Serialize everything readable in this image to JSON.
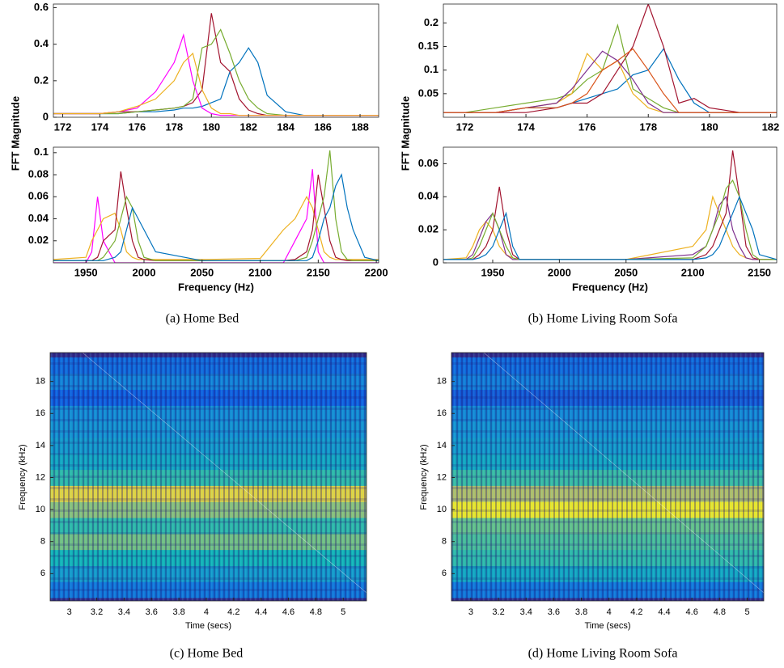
{
  "captions": [
    "(a)  Home Bed",
    "(b)  Home Living Room Sofa",
    "(c)  Home Bed",
    "(d)  Home Living Room Sofa"
  ],
  "chart_data": [
    {
      "type": "line",
      "y_label": "FFT Magnitude",
      "x": [
        171.5,
        173,
        174,
        175,
        176,
        177,
        178,
        178.5,
        179,
        179.5,
        180,
        180.5,
        181,
        181.5,
        182,
        182.5,
        183,
        184,
        185,
        189
      ],
      "xlim": [
        171.5,
        189
      ],
      "xticks": [
        172,
        174,
        176,
        178,
        180,
        182,
        184,
        186,
        188
      ],
      "ylim": [
        0,
        0.62
      ],
      "yticks": [
        0,
        0.2,
        0.4,
        0.6
      ],
      "series": [
        {
          "color": "#0072bd",
          "values": [
            0.02,
            0.02,
            0.02,
            0.02,
            0.03,
            0.03,
            0.04,
            0.05,
            0.05,
            0.06,
            0.08,
            0.1,
            0.25,
            0.3,
            0.38,
            0.3,
            0.12,
            0.03,
            0.01,
            0.01
          ]
        },
        {
          "color": "#a2142f",
          "values": [
            0.02,
            0.02,
            0.02,
            0.03,
            0.03,
            0.04,
            0.05,
            0.06,
            0.08,
            0.15,
            0.57,
            0.3,
            0.25,
            0.1,
            0.04,
            0.02,
            0.01,
            0.01,
            0.01,
            0.01
          ]
        },
        {
          "color": "#77ac30",
          "values": [
            0.02,
            0.02,
            0.02,
            0.02,
            0.03,
            0.04,
            0.05,
            0.06,
            0.1,
            0.38,
            0.4,
            0.48,
            0.35,
            0.2,
            0.1,
            0.05,
            0.02,
            0.01,
            0.01,
            0.01
          ]
        },
        {
          "color": "#ff00ff",
          "values": [
            0.02,
            0.02,
            0.02,
            0.03,
            0.05,
            0.14,
            0.3,
            0.45,
            0.2,
            0.05,
            0.02,
            0.01,
            0.01,
            0.01,
            0.01,
            0.01,
            0.01,
            0.01,
            0.01,
            0.01
          ]
        },
        {
          "color": "#edb120",
          "values": [
            0.02,
            0.02,
            0.02,
            0.03,
            0.06,
            0.1,
            0.2,
            0.3,
            0.35,
            0.15,
            0.05,
            0.02,
            0.02,
            0.01,
            0.01,
            0.01,
            0.01,
            0.01,
            0.01,
            0.01
          ]
        }
      ]
    },
    {
      "type": "line",
      "x_label": "Frequency (Hz)",
      "x": [
        1922,
        1950,
        1955,
        1960,
        1965,
        1975,
        1980,
        1985,
        1990,
        1995,
        2000,
        2010,
        2050,
        2100,
        2120,
        2130,
        2140,
        2145,
        2150,
        2155,
        2160,
        2165,
        2170,
        2175,
        2180,
        2190,
        2202
      ],
      "xlim": [
        1922,
        2202
      ],
      "xticks": [
        1950,
        2000,
        2050,
        2100,
        2150,
        2200
      ],
      "ylim": [
        0,
        0.105
      ],
      "yticks": [
        0.02,
        0.04,
        0.06,
        0.08,
        0.1
      ],
      "series": [
        {
          "color": "#ff00ff",
          "values": [
            0,
            0,
            0.01,
            0.06,
            0.02,
            0,
            0,
            0,
            0,
            0,
            0,
            0,
            0,
            0,
            0,
            0.02,
            0.04,
            0.085,
            0.01,
            0,
            0,
            0,
            0,
            0,
            0,
            0,
            0
          ]
        },
        {
          "color": "#edb120",
          "values": [
            0.003,
            0.005,
            0.02,
            0.03,
            0.04,
            0.045,
            0.03,
            0.01,
            0.005,
            0.003,
            0.003,
            0.003,
            0.003,
            0.004,
            0.03,
            0.04,
            0.06,
            0.05,
            0.03,
            0.01,
            0.005,
            0.003,
            0.003,
            0.003,
            0.003,
            0.003,
            0.003
          ]
        },
        {
          "color": "#a2142f",
          "values": [
            0.002,
            0.002,
            0.002,
            0.005,
            0.02,
            0.03,
            0.083,
            0.05,
            0.02,
            0.005,
            0.003,
            0.002,
            0.002,
            0.002,
            0.002,
            0.003,
            0.01,
            0.03,
            0.08,
            0.05,
            0.02,
            0.005,
            0.003,
            0.002,
            0.002,
            0.002,
            0.002
          ]
        },
        {
          "color": "#77ac30",
          "values": [
            0.002,
            0.002,
            0.002,
            0.002,
            0.005,
            0.02,
            0.04,
            0.06,
            0.05,
            0.02,
            0.005,
            0.002,
            0.002,
            0.002,
            0.002,
            0.002,
            0.005,
            0.02,
            0.04,
            0.06,
            0.102,
            0.04,
            0.01,
            0.003,
            0.002,
            0.002,
            0.002
          ]
        },
        {
          "color": "#0072bd",
          "values": [
            0.002,
            0.002,
            0.002,
            0.002,
            0.002,
            0.005,
            0.01,
            0.03,
            0.05,
            0.04,
            0.03,
            0.01,
            0.002,
            0.002,
            0.002,
            0.002,
            0.002,
            0.005,
            0.02,
            0.04,
            0.05,
            0.07,
            0.08,
            0.05,
            0.03,
            0.005,
            0.002
          ]
        }
      ]
    },
    {
      "type": "line",
      "y_label": "FFT Magnitude",
      "x": [
        171.3,
        172,
        173,
        174,
        175,
        175.5,
        176,
        176.5,
        177,
        177.5,
        178,
        178.5,
        179,
        179.5,
        180,
        181,
        182.2
      ],
      "xlim": [
        171.3,
        182.2
      ],
      "xticks": [
        172,
        174,
        176,
        178,
        180,
        182
      ],
      "ylim": [
        0,
        0.24
      ],
      "yticks": [
        0.05,
        0.1,
        0.15,
        0.2
      ],
      "series": [
        {
          "color": "#0072bd",
          "values": [
            0.01,
            0.01,
            0.01,
            0.02,
            0.02,
            0.03,
            0.04,
            0.05,
            0.06,
            0.09,
            0.1,
            0.145,
            0.08,
            0.03,
            0.01,
            0.01,
            0.01
          ]
        },
        {
          "color": "#a2142f",
          "values": [
            0.01,
            0.01,
            0.01,
            0.01,
            0.02,
            0.03,
            0.03,
            0.05,
            0.1,
            0.15,
            0.24,
            0.15,
            0.03,
            0.04,
            0.02,
            0.01,
            0.01
          ]
        },
        {
          "color": "#77ac30",
          "values": [
            0.01,
            0.01,
            0.02,
            0.03,
            0.04,
            0.05,
            0.08,
            0.1,
            0.195,
            0.06,
            0.04,
            0.02,
            0.01,
            0.01,
            0.01,
            0.01,
            0.01
          ]
        },
        {
          "color": "#edb120",
          "values": [
            0.01,
            0.01,
            0.01,
            0.02,
            0.03,
            0.05,
            0.135,
            0.1,
            0.12,
            0.05,
            0.02,
            0.01,
            0.01,
            0.01,
            0.01,
            0.01,
            0.01
          ]
        },
        {
          "color": "#7e2f8e",
          "values": [
            0.01,
            0.01,
            0.01,
            0.02,
            0.03,
            0.06,
            0.1,
            0.14,
            0.12,
            0.08,
            0.03,
            0.01,
            0.01,
            0.01,
            0.01,
            0.01,
            0.01
          ]
        },
        {
          "color": "#d95319",
          "values": [
            0.01,
            0.01,
            0.01,
            0.02,
            0.02,
            0.03,
            0.05,
            0.1,
            0.12,
            0.145,
            0.1,
            0.05,
            0.01,
            0.01,
            0.01,
            0.01,
            0.01
          ]
        }
      ]
    },
    {
      "type": "line",
      "x_label": "Frequency (Hz)",
      "x": [
        1913,
        1930,
        1935,
        1940,
        1945,
        1950,
        1955,
        1960,
        1965,
        1970,
        2000,
        2050,
        2100,
        2110,
        2115,
        2120,
        2125,
        2130,
        2135,
        2140,
        2145,
        2150,
        2163
      ],
      "xlim": [
        1913,
        2163
      ],
      "xticks": [
        1950,
        2000,
        2050,
        2100,
        2150
      ],
      "ylim": [
        0,
        0.07
      ],
      "yticks": [
        0,
        0.02,
        0.04,
        0.06
      ],
      "series": [
        {
          "color": "#edb120",
          "values": [
            0.002,
            0.003,
            0.01,
            0.02,
            0.025,
            0.02,
            0.01,
            0.005,
            0.003,
            0.002,
            0.002,
            0.002,
            0.01,
            0.02,
            0.04,
            0.03,
            0.02,
            0.01,
            0.005,
            0.003,
            0.002,
            0.002,
            0.002
          ]
        },
        {
          "color": "#7e2f8e",
          "values": [
            0.002,
            0.002,
            0.005,
            0.015,
            0.025,
            0.03,
            0.02,
            0.005,
            0.002,
            0.002,
            0.002,
            0.002,
            0.005,
            0.01,
            0.02,
            0.035,
            0.04,
            0.02,
            0.01,
            0.003,
            0.002,
            0.002,
            0.002
          ]
        },
        {
          "color": "#a2142f",
          "values": [
            0.002,
            0.002,
            0.002,
            0.005,
            0.01,
            0.02,
            0.046,
            0.02,
            0.005,
            0.002,
            0.002,
            0.002,
            0.002,
            0.005,
            0.01,
            0.02,
            0.03,
            0.068,
            0.04,
            0.01,
            0.003,
            0.002,
            0.002
          ]
        },
        {
          "color": "#77ac30",
          "values": [
            0.002,
            0.002,
            0.003,
            0.01,
            0.02,
            0.03,
            0.02,
            0.01,
            0.003,
            0.002,
            0.002,
            0.002,
            0.003,
            0.01,
            0.02,
            0.03,
            0.045,
            0.05,
            0.04,
            0.02,
            0.005,
            0.002,
            0.002
          ]
        },
        {
          "color": "#0072bd",
          "values": [
            0.002,
            0.002,
            0.002,
            0.003,
            0.005,
            0.01,
            0.02,
            0.03,
            0.01,
            0.002,
            0.002,
            0.002,
            0.002,
            0.003,
            0.005,
            0.01,
            0.02,
            0.03,
            0.04,
            0.03,
            0.02,
            0.005,
            0.002
          ]
        }
      ]
    },
    {
      "type": "spectrogram",
      "x_label": "Time (secs)",
      "y_label": "Frequency (kHz)",
      "xlim": [
        2.86,
        5.17
      ],
      "xticks": [
        3,
        3.2,
        3.4,
        3.6,
        3.8,
        4,
        4.2,
        4.4,
        4.6,
        4.8,
        5
      ],
      "ylim": [
        4.3,
        19.8
      ],
      "yticks": [
        6,
        8,
        10,
        12,
        14,
        16,
        18
      ],
      "y": [
        5,
        6,
        7,
        8,
        9,
        10,
        11,
        12,
        13,
        14,
        15,
        16,
        17,
        18,
        19
      ],
      "values": [
        0.3,
        0.45,
        0.55,
        0.72,
        0.6,
        0.75,
        0.9,
        0.6,
        0.5,
        0.45,
        0.42,
        0.4,
        0.2,
        0.35,
        0.25
      ]
    },
    {
      "type": "spectrogram",
      "x_label": "Time (secs)",
      "y_label": "Frequency (kHz)",
      "xlim": [
        2.86,
        5.12
      ],
      "xticks": [
        3,
        3.2,
        3.4,
        3.6,
        3.8,
        4,
        4.2,
        4.4,
        4.6,
        4.8,
        5
      ],
      "ylim": [
        4.3,
        19.8
      ],
      "yticks": [
        6,
        8,
        10,
        12,
        14,
        16,
        18
      ],
      "y": [
        5,
        6,
        7,
        8,
        9,
        10,
        11,
        12,
        13,
        14,
        15,
        16,
        17,
        18,
        19
      ],
      "values": [
        0.3,
        0.5,
        0.6,
        0.65,
        0.7,
        0.95,
        0.8,
        0.62,
        0.5,
        0.45,
        0.42,
        0.38,
        0.18,
        0.33,
        0.25
      ]
    }
  ]
}
